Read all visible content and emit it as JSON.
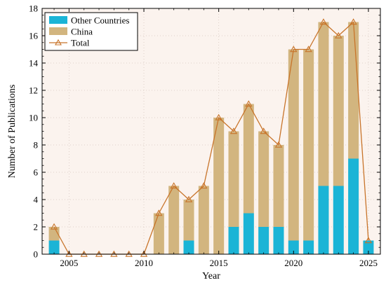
{
  "chart_data": {
    "type": "bar",
    "stacked": true,
    "xlabel": "Year",
    "ylabel": "Number of Publications",
    "ylim": [
      0,
      18
    ],
    "yticks": [
      0,
      2,
      4,
      6,
      8,
      10,
      12,
      14,
      16,
      18
    ],
    "xlim": [
      2003.2,
      2025.8
    ],
    "xticks": [
      2005,
      2010,
      2015,
      2020,
      2025
    ],
    "grid": true,
    "legend_position": "top-left",
    "years": [
      2004,
      2005,
      2006,
      2007,
      2008,
      2009,
      2010,
      2011,
      2012,
      2013,
      2014,
      2015,
      2016,
      2017,
      2018,
      2019,
      2020,
      2021,
      2022,
      2023,
      2024,
      2025
    ],
    "series": [
      {
        "name": "Other Countries",
        "color": "#1bb4d6",
        "values": [
          1,
          0,
          0,
          0,
          0,
          0,
          0,
          0,
          0,
          1,
          0,
          0,
          2,
          3,
          2,
          2,
          1,
          1,
          5,
          5,
          7,
          1
        ]
      },
      {
        "name": "China",
        "color": "#d2b57f",
        "values": [
          1,
          0,
          0,
          0,
          0,
          0,
          0,
          3,
          5,
          3,
          5,
          10,
          7,
          8,
          7,
          6,
          14,
          14,
          12,
          11,
          10,
          0
        ]
      },
      {
        "name": "Total",
        "type": "line",
        "color": "#c8742a",
        "values": [
          2,
          0,
          0,
          0,
          0,
          0,
          0,
          3,
          5,
          4,
          5,
          10,
          9,
          11,
          9,
          8,
          15,
          15,
          17,
          16,
          17,
          1
        ]
      }
    ]
  }
}
